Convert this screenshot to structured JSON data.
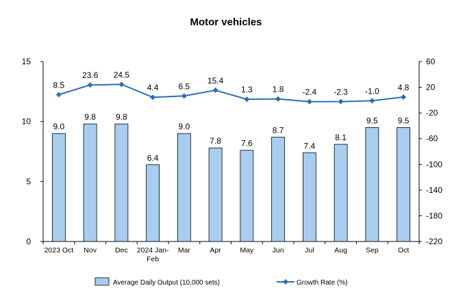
{
  "chart_data": {
    "type": "bar",
    "title": "Motor vehicles",
    "categories": [
      "2023 Oct",
      "Nov",
      "Dec",
      "2024 Jan-Feb",
      "Mar",
      "Apr",
      "May",
      "Jun",
      "Jul",
      "Aug",
      "Sep",
      "Oct"
    ],
    "y_left": {
      "lim": [
        0,
        15
      ],
      "ticks": [
        0,
        5,
        10,
        15
      ]
    },
    "y_right": {
      "lim": [
        -220,
        60
      ],
      "ticks": [
        -220,
        -180,
        -140,
        -100,
        -60,
        -20,
        20,
        60
      ]
    },
    "series": [
      {
        "name": "Average Daily Output (10,000 sets)",
        "type": "bar",
        "axis": "left",
        "color": "#a9cdee",
        "values": [
          9.0,
          9.8,
          9.8,
          6.4,
          9.0,
          7.8,
          7.6,
          8.7,
          7.4,
          8.1,
          9.5,
          9.5
        ],
        "labels": [
          "9.0",
          "9.8",
          "9.8",
          "6.4",
          "9.0",
          "7.8",
          "7.6",
          "8.7",
          "7.4",
          "8.1",
          "9.5",
          "9.5"
        ]
      },
      {
        "name": "Growth Rate (%)",
        "type": "line",
        "axis": "right",
        "color": "#2e6db4",
        "values": [
          8.5,
          23.6,
          24.5,
          4.4,
          6.5,
          15.4,
          1.3,
          1.8,
          -2.4,
          -2.3,
          -1.0,
          4.8
        ],
        "labels": [
          "8.5",
          "23.6",
          "24.5",
          "4.4",
          "6.5",
          "15.4",
          "1.3",
          "1.8",
          "-2.4",
          "-2.3",
          "-1.0",
          "4.8"
        ]
      }
    ],
    "legend_position": "bottom",
    "grid": false
  }
}
